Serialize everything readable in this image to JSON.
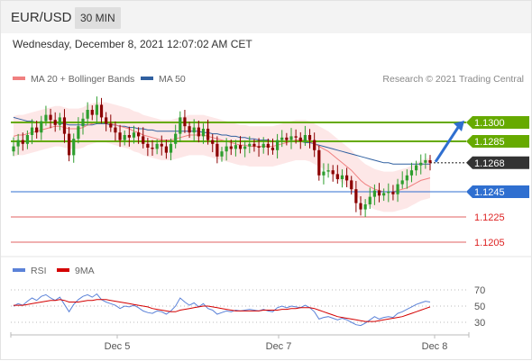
{
  "header": {
    "symbol": "EUR/USD",
    "timeframe": "30 MIN"
  },
  "timestamp": "Wednesday, December 8, 2021 12:07:02 AM CET",
  "legend": {
    "ma20": "MA 20 + Bollinger Bands",
    "ma50": "MA 50",
    "credit": "Research © 2021 Trading Central"
  },
  "colors": {
    "candle_up": "#2e9e2e",
    "candle_down": "#8b0000",
    "ma20": "#f08080",
    "bollinger_fill": "#fde3e3",
    "ma50": "#3060a0",
    "resistance": "#66aa00",
    "support": "#2f6fd0",
    "pivot": "#e06060",
    "current": "#333333",
    "rsi": "#5b82d8",
    "rsi_ma": "#d40000"
  },
  "chart_data": [
    {
      "type": "candlestick",
      "title": "",
      "x_labels": [
        "Dec 5",
        "Dec 7",
        "Dec 8"
      ],
      "ylim": [
        1.1195,
        1.1325
      ],
      "overlays": [
        "MA 20 + Bollinger Bands",
        "MA 50"
      ],
      "levels": [
        {
          "value": 1.13,
          "label": "1.1300",
          "kind": "resistance"
        },
        {
          "value": 1.1285,
          "label": "1.1285",
          "kind": "resistance"
        },
        {
          "value": 1.1268,
          "label": "1.1268",
          "kind": "current"
        },
        {
          "value": 1.1245,
          "label": "1.1245",
          "kind": "support"
        },
        {
          "value": 1.1225,
          "label": "1.1225",
          "kind": "pivot"
        },
        {
          "value": 1.1205,
          "label": "1.1205",
          "kind": "pivot"
        }
      ],
      "close": [
        1.1281,
        1.1286,
        1.1283,
        1.129,
        1.1296,
        1.1292,
        1.1301,
        1.1306,
        1.1302,
        1.1298,
        1.1304,
        1.1291,
        1.1274,
        1.1287,
        1.1297,
        1.1303,
        1.131,
        1.1306,
        1.1314,
        1.1304,
        1.1299,
        1.1296,
        1.1292,
        1.1286,
        1.129,
        1.1288,
        1.1292,
        1.1289,
        1.1283,
        1.128,
        1.1279,
        1.1283,
        1.1281,
        1.1276,
        1.1283,
        1.1291,
        1.1304,
        1.1297,
        1.1292,
        1.1296,
        1.1289,
        1.1295,
        1.1286,
        1.1283,
        1.1273,
        1.1277,
        1.1281,
        1.1279,
        1.1282,
        1.1279,
        1.1281,
        1.1283,
        1.1281,
        1.128,
        1.1283,
        1.128,
        1.1278,
        1.1286,
        1.1288,
        1.1286,
        1.1289,
        1.1288,
        1.1285,
        1.129,
        1.1286,
        1.1278,
        1.1258,
        1.1261,
        1.1262,
        1.1259,
        1.1255,
        1.1258,
        1.1254,
        1.1247,
        1.1236,
        1.1231,
        1.1235,
        1.1241,
        1.1246,
        1.1242,
        1.1244,
        1.1245,
        1.1243,
        1.1251,
        1.1254,
        1.1258,
        1.1262,
        1.1266,
        1.1268,
        1.127,
        1.1268
      ],
      "ma20": [
        1.1289,
        1.129,
        1.129,
        1.1291,
        1.1292,
        1.1293,
        1.1294,
        1.1295,
        1.1296,
        1.1297,
        1.1297,
        1.1296,
        1.1295,
        1.1295,
        1.1295,
        1.1296,
        1.1298,
        1.1299,
        1.13,
        1.13,
        1.13,
        1.1299,
        1.1298,
        1.1297,
        1.1296,
        1.1295,
        1.1293,
        1.1292,
        1.129,
        1.1289,
        1.1288,
        1.1287,
        1.1286,
        1.1286,
        1.1286,
        1.1287,
        1.1288,
        1.1289,
        1.129,
        1.129,
        1.129,
        1.129,
        1.1289,
        1.1288,
        1.1287,
        1.1286,
        1.1285,
        1.1284,
        1.1283,
        1.1282,
        1.1282,
        1.1281,
        1.1281,
        1.1281,
        1.1281,
        1.1281,
        1.1281,
        1.1282,
        1.1283,
        1.1284,
        1.1285,
        1.1286,
        1.1286,
        1.1286,
        1.1285,
        1.1283,
        1.1281,
        1.1279,
        1.1277,
        1.1274,
        1.1271,
        1.1268,
        1.1265,
        1.1262,
        1.1258,
        1.1254,
        1.1251,
        1.1249,
        1.1247,
        1.1246,
        1.1245,
        1.1245,
        1.1245,
        1.1246,
        1.1247,
        1.1248,
        1.125,
        1.1252,
        1.1254,
        1.1255,
        1.1256
      ],
      "ma50": [
        1.1304,
        1.1303,
        1.1302,
        1.1301,
        1.1301,
        1.13,
        1.13,
        1.13,
        1.13,
        1.13,
        1.1299,
        1.1299,
        1.1298,
        1.1298,
        1.1298,
        1.1298,
        1.1298,
        1.1298,
        1.1299,
        1.1299,
        1.1299,
        1.1298,
        1.1298,
        1.1297,
        1.1297,
        1.1296,
        1.1296,
        1.1295,
        1.1295,
        1.1294,
        1.1294,
        1.1293,
        1.1293,
        1.1293,
        1.1293,
        1.1293,
        1.1293,
        1.1293,
        1.1293,
        1.1293,
        1.1293,
        1.1292,
        1.1292,
        1.1291,
        1.1291,
        1.129,
        1.129,
        1.1289,
        1.1289,
        1.1288,
        1.1288,
        1.1287,
        1.1287,
        1.1286,
        1.1286,
        1.1286,
        1.1285,
        1.1285,
        1.1285,
        1.1285,
        1.1285,
        1.1285,
        1.1285,
        1.1284,
        1.1284,
        1.1283,
        1.1282,
        1.1281,
        1.128,
        1.1279,
        1.1278,
        1.1277,
        1.1276,
        1.1275,
        1.1274,
        1.1273,
        1.1272,
        1.1271,
        1.127,
        1.1269,
        1.1268,
        1.1268,
        1.1267,
        1.1267,
        1.1267,
        1.1267,
        1.1267,
        1.1267,
        1.1267,
        1.1267,
        1.1267
      ],
      "bb_width": 0.0016,
      "forecast": {
        "from": 1.1268,
        "to": 1.13
      }
    },
    {
      "type": "line",
      "title": "",
      "legend": [
        "RSI",
        "9MA"
      ],
      "ylim": [
        20,
        80
      ],
      "y_ticks": [
        30,
        50,
        70
      ],
      "rsi": [
        50,
        53,
        51,
        56,
        60,
        57,
        62,
        64,
        60,
        57,
        61,
        52,
        43,
        52,
        58,
        62,
        64,
        61,
        65,
        58,
        55,
        53,
        51,
        47,
        50,
        49,
        51,
        48,
        44,
        42,
        41,
        44,
        43,
        40,
        44,
        50,
        60,
        55,
        51,
        54,
        49,
        53,
        47,
        45,
        40,
        42,
        44,
        43,
        45,
        44,
        45,
        46,
        45,
        44,
        46,
        44,
        43,
        48,
        50,
        48,
        50,
        49,
        48,
        51,
        48,
        43,
        34,
        36,
        37,
        35,
        33,
        35,
        33,
        30,
        27,
        26,
        29,
        33,
        37,
        34,
        36,
        37,
        36,
        41,
        43,
        46,
        49,
        52,
        54,
        56,
        55
      ],
      "rsi_ma": [
        51,
        51,
        51,
        52,
        53,
        54,
        55,
        56,
        57,
        57,
        58,
        57,
        55,
        55,
        55,
        56,
        57,
        57,
        58,
        58,
        58,
        57,
        56,
        55,
        54,
        53,
        52,
        51,
        50,
        49,
        47,
        46,
        45,
        44,
        43,
        43,
        45,
        46,
        47,
        48,
        49,
        50,
        50,
        49,
        48,
        47,
        46,
        45,
        44,
        44,
        44,
        44,
        44,
        44,
        45,
        45,
        45,
        45,
        46,
        46,
        47,
        47,
        48,
        48,
        48,
        47,
        45,
        43,
        41,
        39,
        37,
        36,
        35,
        34,
        33,
        32,
        31,
        31,
        31,
        32,
        33,
        34,
        35,
        36,
        37,
        39,
        41,
        43,
        45,
        47,
        49
      ]
    }
  ]
}
